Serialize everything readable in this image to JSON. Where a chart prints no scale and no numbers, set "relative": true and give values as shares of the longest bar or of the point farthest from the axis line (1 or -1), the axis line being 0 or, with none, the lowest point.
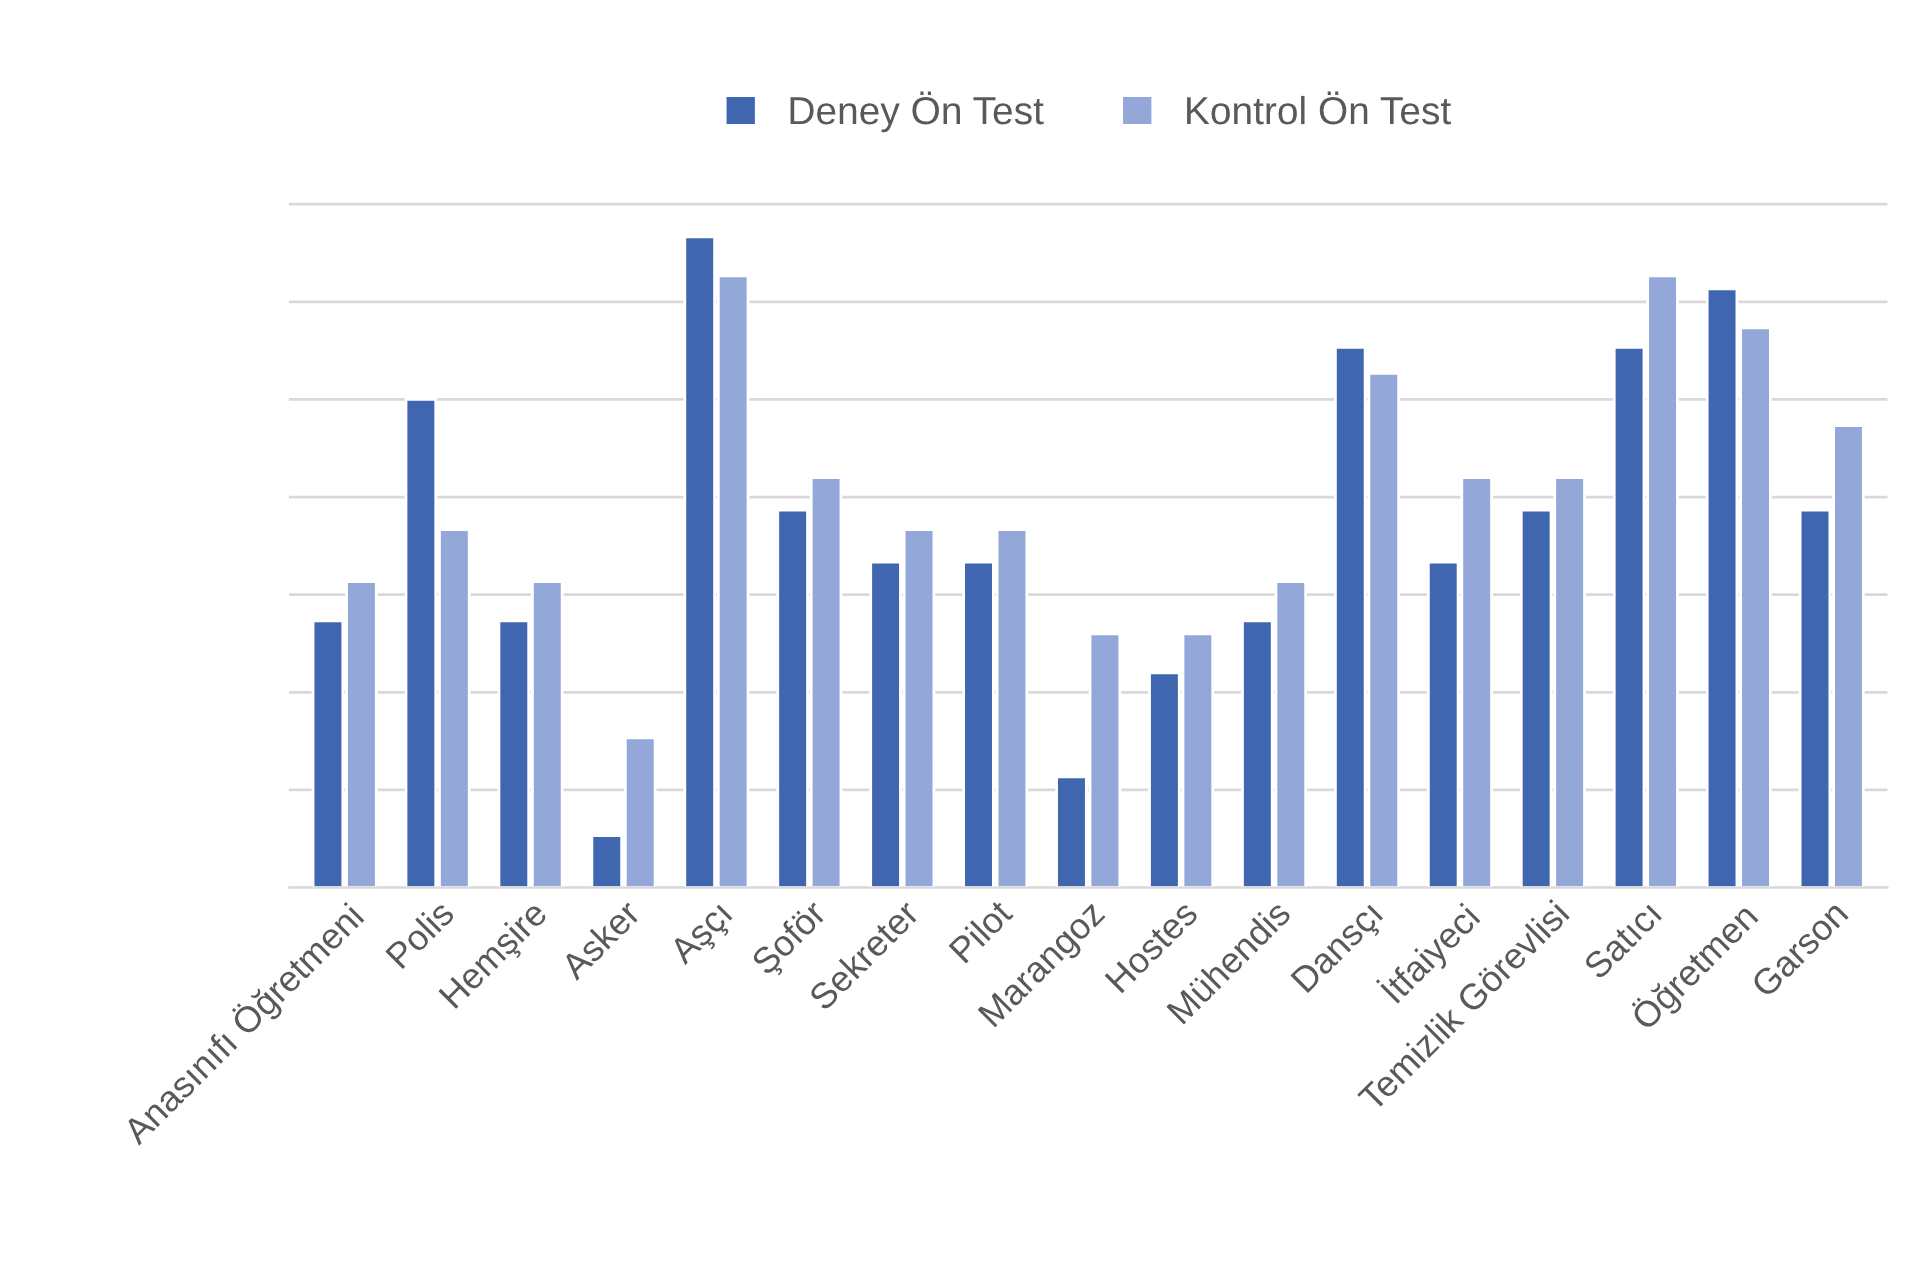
{
  "chart_data": {
    "type": "bar",
    "relative": true,
    "grid": "y",
    "legend": "top",
    "categories": [
      "Anasınıfı Öğretmeni",
      "Polis",
      "Hemşire",
      "Asker",
      "Aşçı",
      "Şoför",
      "Sekreter",
      "Pilot",
      "Marangoz",
      "Hostes",
      "Mühendis",
      "Dansçı",
      "İtfaiyeci",
      "Temizlik Görevlisi",
      "Satıcı",
      "Öğretmen",
      "Garson"
    ],
    "series": [
      {
        "name": "Deney Ön Test",
        "color": "#4066b0",
        "values": [
          0.41,
          0.75,
          0.41,
          0.08,
          1,
          0.58,
          0.5,
          0.5,
          0.17,
          0.33,
          0.41,
          0.83,
          0.5,
          0.58,
          0.83,
          0.92,
          0.58
        ]
      },
      {
        "name": "Kontrol Ön Test",
        "color": "#93a8d8",
        "values": [
          0.47,
          0.55,
          0.47,
          0.23,
          0.94,
          0.63,
          0.55,
          0.55,
          0.39,
          0.39,
          0.47,
          0.79,
          0.63,
          0.63,
          0.94,
          0.86,
          0.71
        ]
      }
    ]
  }
}
